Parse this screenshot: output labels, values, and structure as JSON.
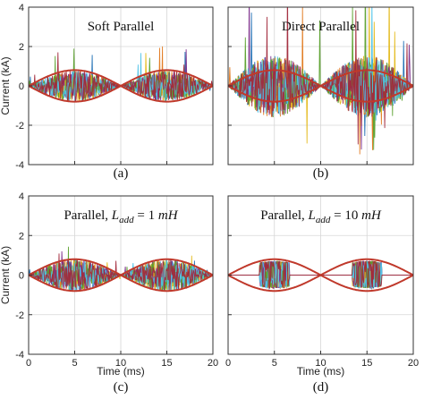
{
  "shared_y_label": "Current (kA)",
  "chart_data": [
    {
      "type": "line",
      "title": "Soft Parallel",
      "caption": "(a)",
      "xlabel": "",
      "ylabel": "Current (kA)",
      "xlim": [
        0,
        20
      ],
      "ylim": [
        -4,
        4
      ],
      "x_ticks": [
        "",
        "",
        "",
        "",
        ""
      ],
      "y_ticks": [
        "4",
        "2",
        "0",
        "-2",
        "-4"
      ],
      "grid": true,
      "envelope": {
        "name": "",
        "amplitude": 0.8,
        "period_ms": 10
      },
      "switching": {
        "amplitude": 0.8,
        "spike": 0.6,
        "density": 1.0
      }
    },
    {
      "type": "line",
      "title": "Direct Parallel",
      "caption": "(b)",
      "xlabel": "",
      "ylabel": "",
      "xlim": [
        0,
        20
      ],
      "ylim": [
        -4,
        4
      ],
      "x_ticks": [
        "",
        "",
        "",
        "",
        ""
      ],
      "y_ticks": [
        "",
        "",
        "",
        "",
        ""
      ],
      "grid": true,
      "envelope": {
        "name": "",
        "amplitude": 0.8,
        "period_ms": 10
      },
      "switching": {
        "amplitude": 1.6,
        "spike": 2.2,
        "density": 1.0
      }
    },
    {
      "type": "line",
      "title": "Parallel, L_add = 1 mH",
      "title_parts": {
        "prefix": "Parallel, ",
        "sym": "L",
        "sub": "add",
        "rest": " = 1 ",
        "unit": "mH"
      },
      "caption": "(c)",
      "xlabel": "Time (ms)",
      "ylabel": "Current (kA)",
      "xlim": [
        0,
        20
      ],
      "ylim": [
        -4,
        4
      ],
      "x_ticks": [
        "0",
        "5",
        "10",
        "15",
        "20"
      ],
      "y_ticks": [
        "4",
        "2",
        "0",
        "-2",
        "-4"
      ],
      "grid": true,
      "envelope": {
        "name": "",
        "amplitude": 0.8,
        "period_ms": 10
      },
      "switching": {
        "amplitude": 0.85,
        "spike": 0.3,
        "density": 1.0
      }
    },
    {
      "type": "line",
      "title": "Parallel, L_add = 10 mH",
      "title_parts": {
        "prefix": "Parallel, ",
        "sym": "L",
        "sub": "add",
        "rest": " = 10 ",
        "unit": "mH"
      },
      "caption": "(d)",
      "xlabel": "Time (ms)",
      "ylabel": "",
      "xlim": [
        0,
        20
      ],
      "ylim": [
        -4,
        4
      ],
      "x_ticks": [
        "0",
        "5",
        "10",
        "15",
        "20"
      ],
      "y_ticks": [
        "",
        "",
        "",
        "",
        ""
      ],
      "grid": true,
      "envelope": {
        "name": "",
        "amplitude": 0.8,
        "period_ms": 10
      },
      "switching": {
        "amplitude": 0.7,
        "spike": 0.0,
        "density": 0.35
      }
    }
  ],
  "colors": {
    "envelope": "#c0392b",
    "series": [
      "#1f6fb4",
      "#e0781c",
      "#e4b91a",
      "#7b2d8b",
      "#5aa02c",
      "#4fc3e8",
      "#a1283a"
    ],
    "grid": "#d6d6d6",
    "axis": "#333333"
  }
}
